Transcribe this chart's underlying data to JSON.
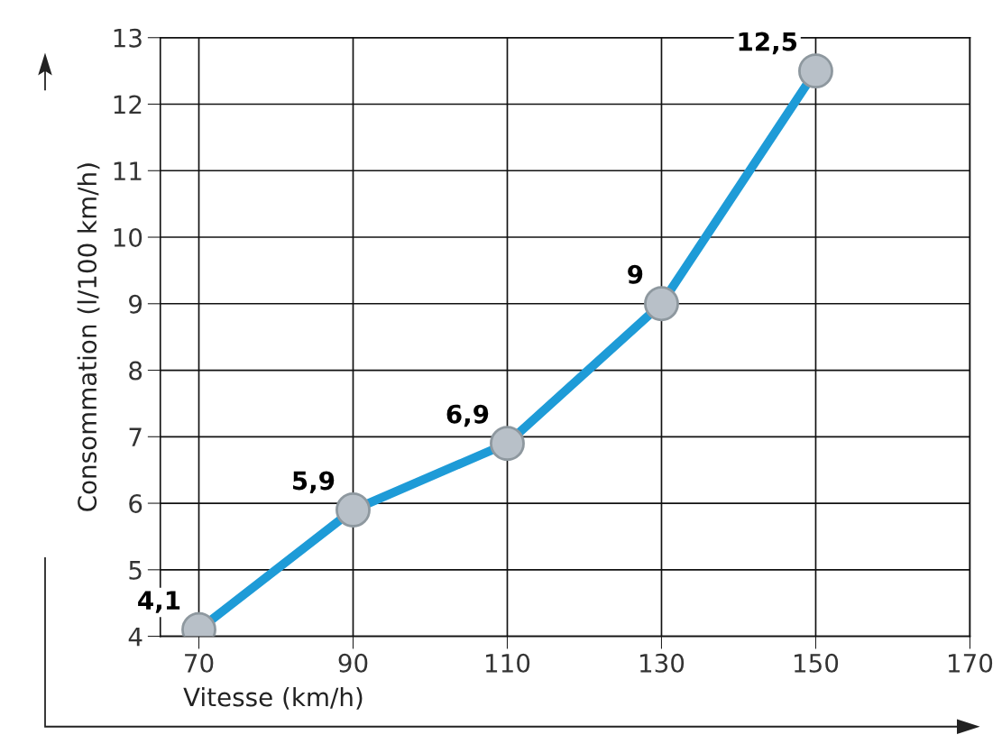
{
  "chart_data": {
    "type": "line",
    "xlabel": "Vitesse (km/h)",
    "ylabel": "Consommation (l/100 km/h)",
    "x": [
      70,
      90,
      110,
      130,
      150
    ],
    "series": [
      {
        "color": "#1e9bd7",
        "values": [
          4.1,
          5.9,
          6.9,
          9,
          12.5
        ],
        "value_labels": [
          "4,1",
          "5,9",
          "6,9",
          "9",
          "12,5"
        ]
      }
    ],
    "xlim": [
      65,
      170
    ],
    "ylim": [
      4,
      13
    ],
    "xticks": [
      70,
      90,
      110,
      130,
      150,
      170
    ],
    "yticks": [
      4,
      5,
      6,
      7,
      8,
      9,
      10,
      11,
      12,
      13
    ],
    "grid": true,
    "marker": "circle",
    "line_style": "solid"
  }
}
